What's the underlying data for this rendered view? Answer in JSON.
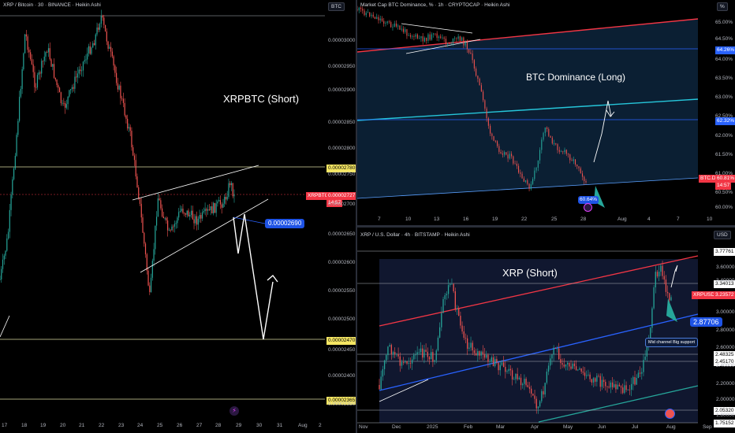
{
  "colors": {
    "up": "#26a69a",
    "down": "#ef5350",
    "xrpbtc_price": "#f23645",
    "accent_blue": "#2962ff",
    "yellow": "#f5e663"
  },
  "panel_left": {
    "header": "XRP / Bitcoin · 30 · BINANCE · Heikin Ashi",
    "unit": "BTC",
    "annotation": "XRPBTC (Short)",
    "y_ticks": [
      "0.00003000",
      "0.00002950",
      "0.00002900",
      "0.00002850",
      "0.00002800",
      "0.00002750",
      "0.00002700",
      "0.00002650",
      "0.00002600",
      "0.00002550",
      "0.00002500",
      "0.00002450",
      "0.00002400",
      "0.00002350"
    ],
    "x_ticks": [
      "17",
      "18",
      "19",
      "20",
      "21",
      "22",
      "23",
      "24",
      "25",
      "26",
      "27",
      "28",
      "29",
      "30",
      "31",
      "Aug",
      "2"
    ],
    "level_labels": [
      "0.00002780",
      "0.00002470",
      "0.00002365"
    ],
    "price_tag": {
      "symbol": "XRPBTC",
      "price": "0.00002727",
      "countdown": "14:57"
    },
    "target_label": "0.00002690"
  },
  "panel_tr": {
    "header": "Market Cap BTC Dominance, % · 1h · CRYPTOCAP · Heikin Ashi",
    "unit": "%",
    "annotation": "BTC Dominance (Long)",
    "y_ticks": [
      "65.00%",
      "64.50%",
      "64.00%",
      "63.50%",
      "63.00%",
      "62.50%",
      "62.00%",
      "61.50%",
      "61.00%",
      "60.50%",
      "60.00%"
    ],
    "x_ticks": [
      "7",
      "10",
      "13",
      "16",
      "19",
      "22",
      "25",
      "28",
      "Aug",
      "4",
      "7",
      "10"
    ],
    "level_labels": [
      "64.26%",
      "62.32%"
    ],
    "price_tag": {
      "symbol": "BTC.D",
      "price": "60.81%",
      "countdown": "14:57"
    },
    "bubble": "60.64%"
  },
  "panel_br": {
    "header": "XRP / U.S. Dollar · 4h · BITSTAMP · Heikin Ashi",
    "unit": "USD",
    "annotation": "XRP (Short)",
    "y_ticks": [
      "3.60000",
      "3.40000",
      "3.00000",
      "2.80000",
      "2.60000",
      "2.40000",
      "2.20000",
      "2.00000",
      "1.80000"
    ],
    "x_ticks": [
      "Nov",
      "Dec",
      "2025",
      "Feb",
      "Mar",
      "Apr",
      "May",
      "Jun",
      "Jul",
      "Aug",
      "Sep"
    ],
    "level_labels": [
      "3.77761",
      "3.34013",
      "2.48325",
      "2.45170",
      "2.05320",
      "1.75152"
    ],
    "price_tag": {
      "symbol": "XRPUSD",
      "price": "3.23572"
    },
    "target_label": "2.87706",
    "callout": "Mid channel Big support"
  },
  "chart_data": [
    {
      "type": "line",
      "title": "XRP / Bitcoin · 30 · BINANCE · Heikin Ashi",
      "ylabel": "BTC",
      "ylim": [
        2.33e-05,
        3.06e-05
      ],
      "categories": [
        "17",
        "18",
        "19",
        "20",
        "21",
        "22",
        "23",
        "24",
        "25",
        "26",
        "27",
        "28",
        "29",
        "30",
        "31",
        "Aug",
        "2"
      ],
      "series": [
        {
          "values": [
            2.55e-05,
            2.95e-05,
            2.98e-05,
            2.85e-05,
            2.9e-05,
            3.04e-05,
            2.92e-05,
            2.63e-05,
            2.65e-05,
            2.68e-05,
            2.71e-05,
            2.75e-05,
            2.7e-05,
            null,
            null,
            null,
            null
          ]
        }
      ],
      "annotations": [
        "XRPBTC (Short)"
      ],
      "levels": [
        2.78e-05,
        2.47e-05,
        2.365e-05
      ],
      "last": 2.727e-05,
      "target": 2.69e-05
    },
    {
      "type": "line",
      "title": "Market Cap BTC Dominance, % · 1h · CRYPTOCAP · Heikin Ashi",
      "ylabel": "%",
      "ylim": [
        59.8,
        65.3
      ],
      "categories": [
        "7",
        "10",
        "13",
        "16",
        "19",
        "22",
        "25",
        "28",
        "Aug",
        "4",
        "7",
        "10"
      ],
      "series": [
        {
          "values": [
            65.1,
            64.8,
            64.6,
            64.1,
            61.8,
            60.9,
            61.9,
            60.7,
            null,
            null,
            null,
            null
          ]
        }
      ],
      "annotations": [
        "BTC Dominance (Long)"
      ],
      "levels": [
        64.26,
        62.32
      ],
      "last": 60.81
    },
    {
      "type": "line",
      "title": "XRP / U.S. Dollar · 4h · BITSTAMP · Heikin Ashi",
      "ylabel": "USD",
      "ylim": [
        1.7,
        3.85
      ],
      "categories": [
        "Nov",
        "Dec",
        "2025",
        "Feb",
        "Mar",
        "Apr",
        "May",
        "Jun",
        "Jul",
        "Aug",
        "Sep"
      ],
      "series": [
        {
          "values": [
            null,
            2.5,
            3.1,
            2.9,
            2.3,
            2.0,
            2.4,
            2.2,
            2.3,
            3.6,
            null
          ]
        }
      ],
      "annotations": [
        "XRP (Short)",
        "Mid channel Big support"
      ],
      "levels": [
        3.77761,
        3.34013,
        2.48325,
        2.4517,
        2.0532,
        1.75152
      ],
      "last": 3.23572,
      "target": 2.87706
    }
  ]
}
